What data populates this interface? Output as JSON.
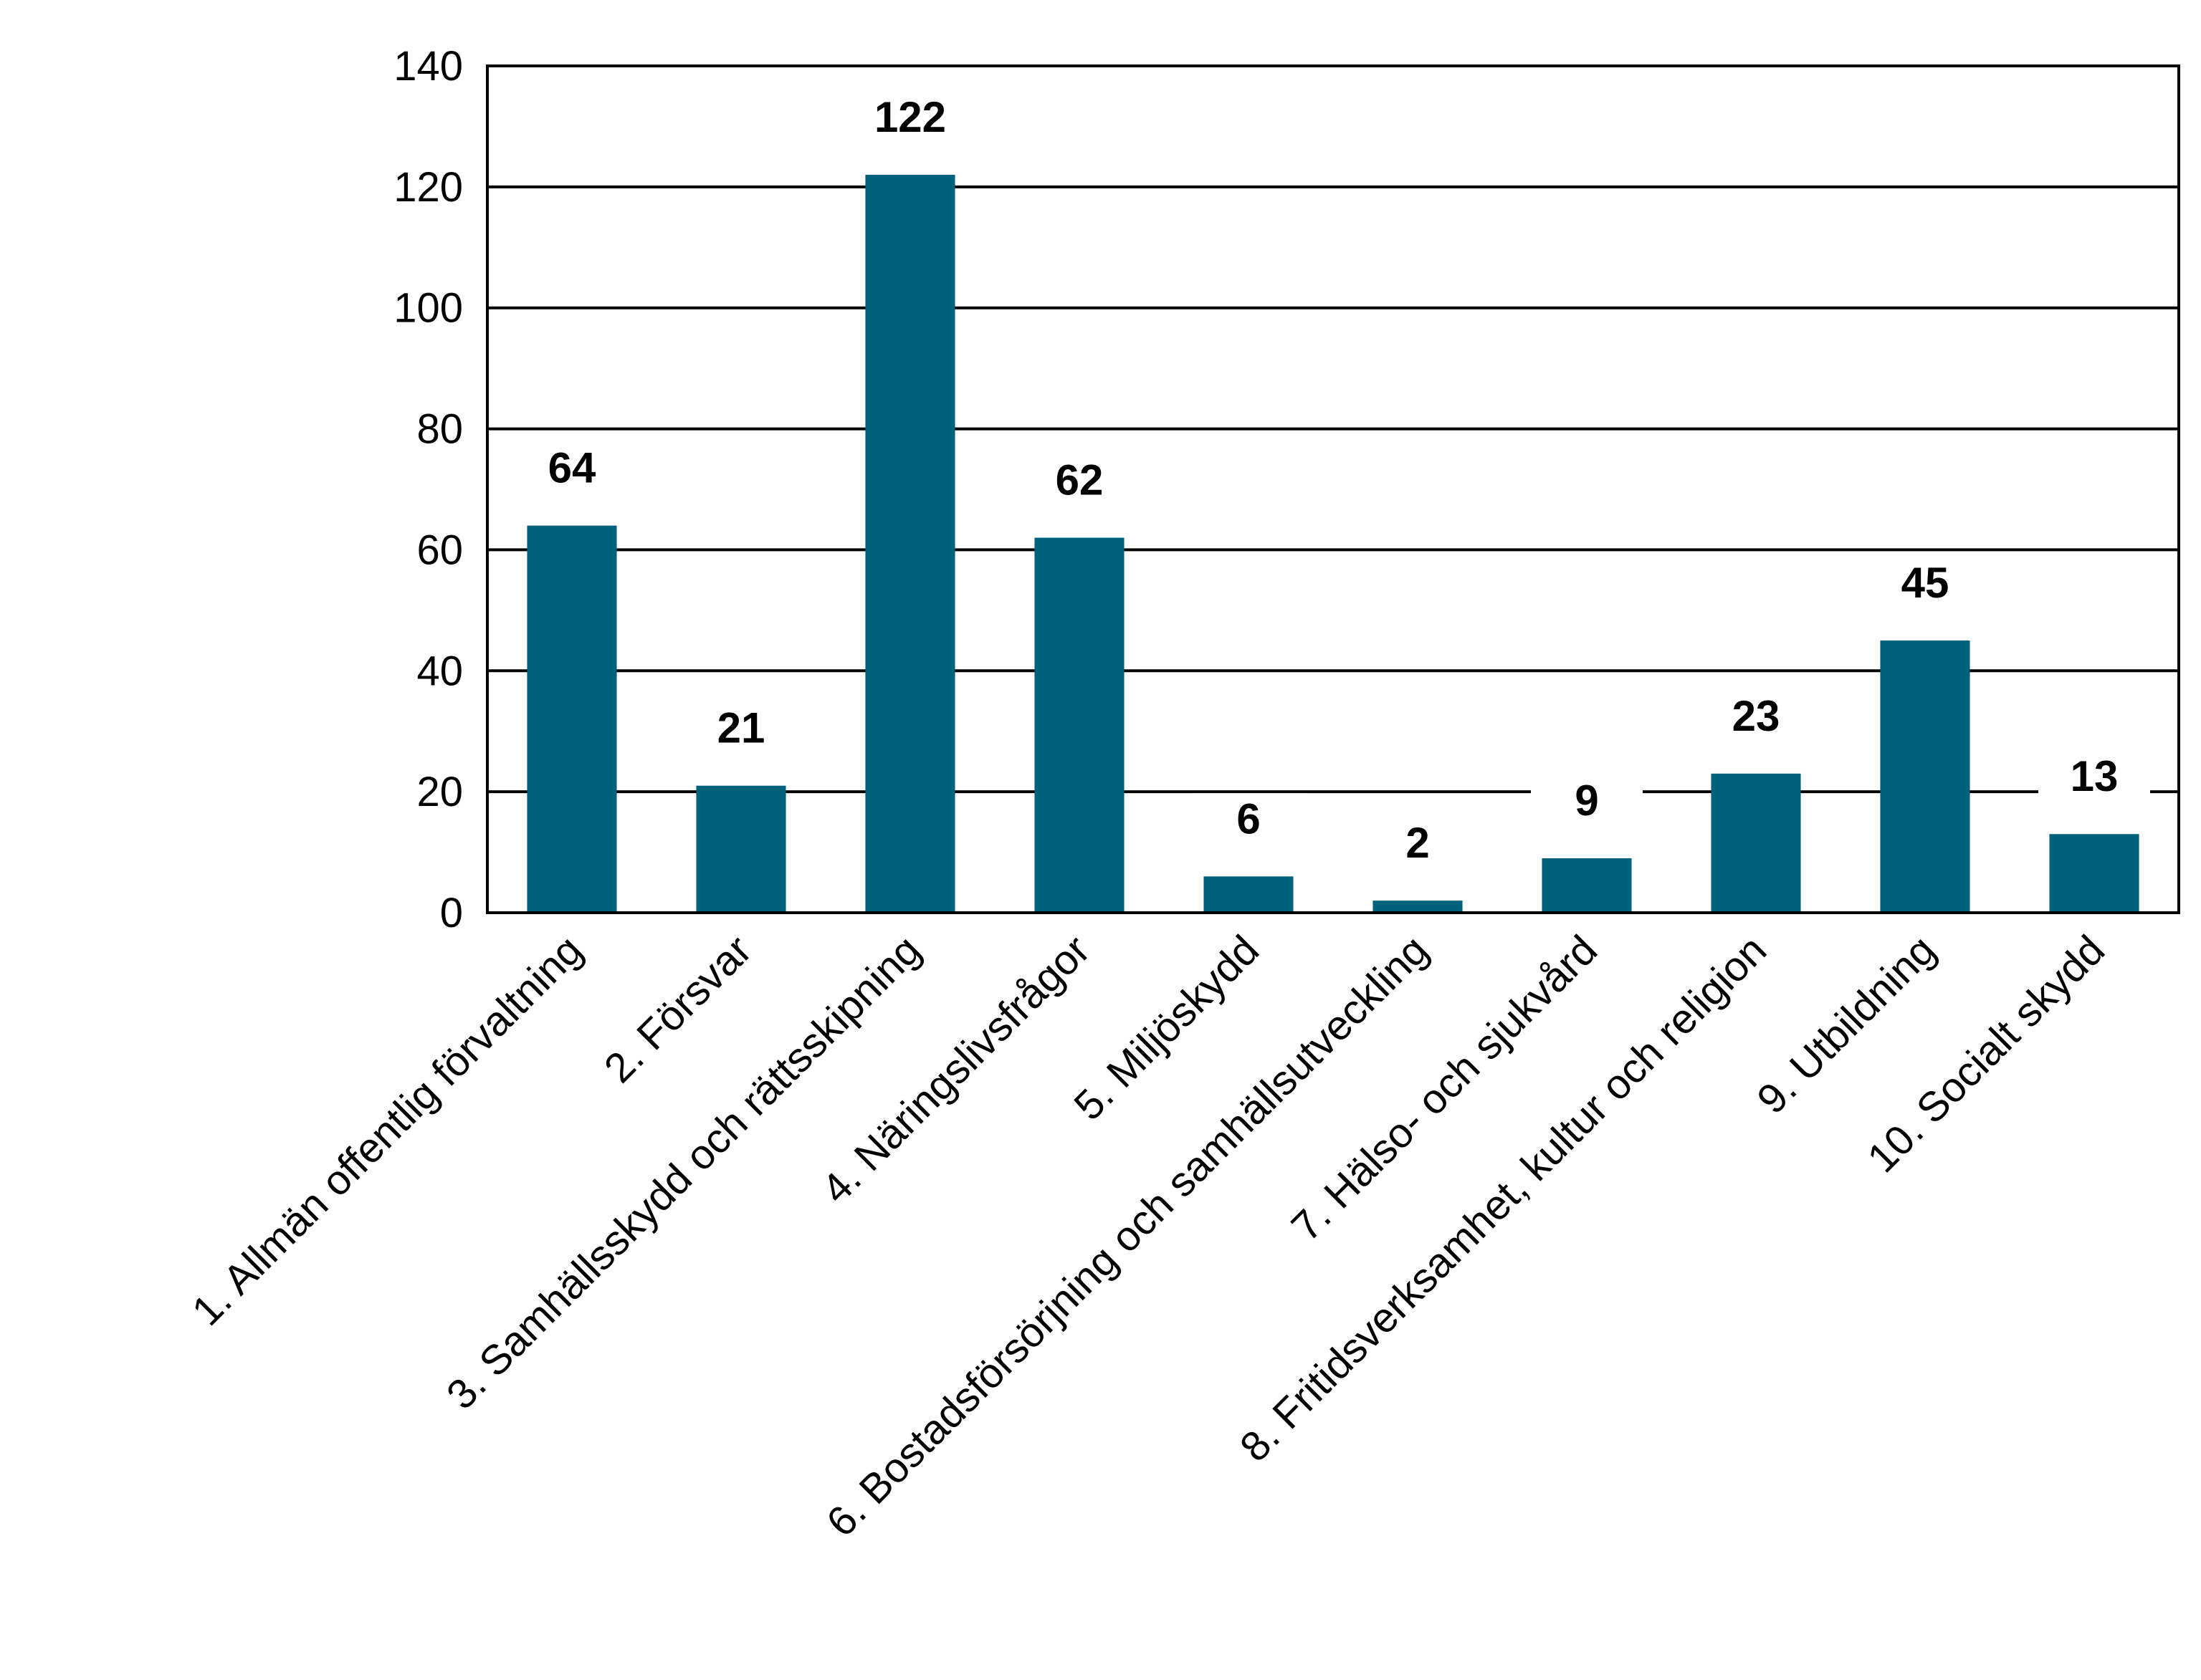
{
  "chart_data": {
    "type": "bar",
    "categories": [
      "1. Allmän offentlig förvaltning",
      "2. Försvar",
      "3. Samhällsskydd och rättsskipning",
      "4. Näringslivsfrågor",
      "5. Miljöskydd",
      "6. Bostadsförsörjning och samhällsutveckling",
      "7. Hälso- och sjukvård",
      "8. Fritidsverksamhet, kultur och religion",
      "9. Utbildning",
      "10. Socialt skydd"
    ],
    "values": [
      64,
      21,
      122,
      62,
      6,
      2,
      9,
      23,
      45,
      13
    ],
    "data_labels": [
      "64",
      "21",
      "122",
      "62",
      "6",
      "2",
      "9",
      "23",
      "45",
      "13"
    ],
    "ylim": [
      0,
      140
    ],
    "yticks": [
      0,
      20,
      40,
      60,
      80,
      100,
      120,
      140
    ],
    "ytick_labels": [
      "0",
      "20",
      "40",
      "60",
      "80",
      "100",
      "120",
      "140"
    ],
    "title": "",
    "xlabel": "",
    "ylabel": "",
    "grid": true,
    "legend": false,
    "bar_color": "#00627A",
    "grid_color": "#000000"
  }
}
